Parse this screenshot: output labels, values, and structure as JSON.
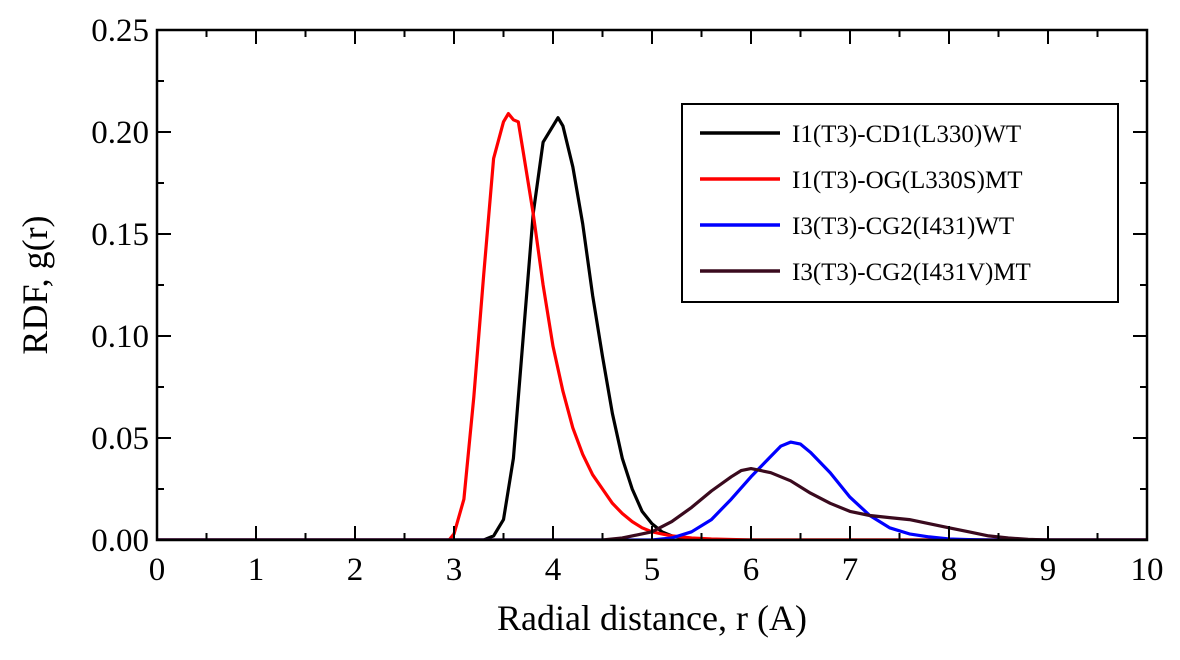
{
  "chart_data": {
    "type": "line",
    "title": "",
    "xlabel": "Radial distance, r (A)",
    "ylabel": "RDF, g(r)",
    "xlim": [
      0,
      10
    ],
    "ylim": [
      0,
      0.25
    ],
    "x_ticks": [
      0,
      1,
      2,
      3,
      4,
      5,
      6,
      7,
      8,
      9,
      10
    ],
    "x_tick_labels": [
      "0",
      "1",
      "2",
      "3",
      "4",
      "5",
      "6",
      "7",
      "8",
      "9",
      "10"
    ],
    "y_ticks": [
      0,
      0.05,
      0.1,
      0.15,
      0.2,
      0.25
    ],
    "y_tick_labels": [
      "0.00",
      "0.05",
      "0.10",
      "0.15",
      "0.20",
      "0.25"
    ],
    "grid": false,
    "legend_position": "top-right",
    "series": [
      {
        "name": "I1(T3)-CD1(L330)WT",
        "color": "#000000",
        "x": [
          0,
          3.3,
          3.4,
          3.5,
          3.6,
          3.7,
          3.8,
          3.9,
          4.0,
          4.05,
          4.1,
          4.2,
          4.3,
          4.4,
          4.5,
          4.6,
          4.7,
          4.8,
          4.9,
          5.0,
          5.1,
          5.2,
          5.3,
          5.5,
          10
        ],
        "y": [
          0,
          0,
          0.002,
          0.01,
          0.04,
          0.1,
          0.16,
          0.195,
          0.203,
          0.207,
          0.203,
          0.183,
          0.155,
          0.12,
          0.09,
          0.062,
          0.04,
          0.025,
          0.014,
          0.008,
          0.004,
          0.002,
          0.001,
          0,
          0
        ]
      },
      {
        "name": "I1(T3)-OG(L330S)MT",
        "color": "#ff0000",
        "x": [
          0,
          2.95,
          3.0,
          3.1,
          3.2,
          3.3,
          3.4,
          3.5,
          3.55,
          3.6,
          3.65,
          3.7,
          3.8,
          3.9,
          4.0,
          4.1,
          4.2,
          4.3,
          4.4,
          4.5,
          4.6,
          4.7,
          4.8,
          4.9,
          5.0,
          5.1,
          5.2,
          5.4,
          5.6,
          6.0,
          10
        ],
        "y": [
          0,
          0,
          0.003,
          0.02,
          0.07,
          0.13,
          0.187,
          0.205,
          0.209,
          0.206,
          0.205,
          0.19,
          0.16,
          0.125,
          0.095,
          0.073,
          0.055,
          0.042,
          0.032,
          0.025,
          0.018,
          0.013,
          0.009,
          0.006,
          0.004,
          0.003,
          0.002,
          0.001,
          0.0005,
          0,
          0
        ]
      },
      {
        "name": "I3(T3)-CG2(I431)WT",
        "color": "#0000ff",
        "x": [
          0,
          5.0,
          5.2,
          5.4,
          5.6,
          5.8,
          6.0,
          6.2,
          6.3,
          6.4,
          6.5,
          6.6,
          6.8,
          7.0,
          7.2,
          7.4,
          7.6,
          7.8,
          8.0,
          8.2,
          8.4,
          10
        ],
        "y": [
          0,
          0,
          0.001,
          0.004,
          0.01,
          0.02,
          0.031,
          0.041,
          0.046,
          0.048,
          0.047,
          0.043,
          0.033,
          0.021,
          0.012,
          0.006,
          0.003,
          0.0015,
          0.0005,
          0.0002,
          0,
          0
        ]
      },
      {
        "name": "I3(T3)-CG2(I431V)MT",
        "color": "#3a0a1e",
        "x": [
          0,
          4.5,
          4.7,
          5.0,
          5.2,
          5.4,
          5.6,
          5.8,
          5.9,
          6.0,
          6.1,
          6.2,
          6.4,
          6.6,
          6.8,
          7.0,
          7.2,
          7.4,
          7.6,
          7.8,
          8.0,
          8.2,
          8.4,
          8.6,
          8.8,
          9.0,
          10
        ],
        "y": [
          0,
          0,
          0.001,
          0.004,
          0.009,
          0.016,
          0.024,
          0.031,
          0.034,
          0.035,
          0.034,
          0.033,
          0.029,
          0.023,
          0.018,
          0.014,
          0.012,
          0.011,
          0.01,
          0.008,
          0.006,
          0.004,
          0.002,
          0.001,
          0.0003,
          0,
          0
        ]
      }
    ]
  }
}
